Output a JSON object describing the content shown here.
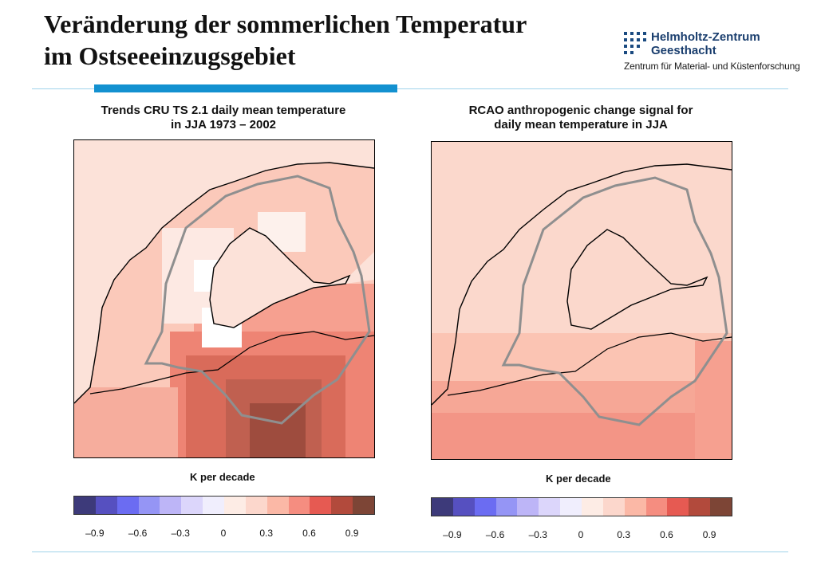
{
  "slide": {
    "title_line1": "Veränderung der sommerlichen Temperatur",
    "title_line2": "im Ostseeeinzugsgebiet"
  },
  "logo": {
    "name": "Helmholtz-Zentrum\nGeesthacht",
    "subtitle": "Zentrum für Material- und Küstenforschung",
    "color": "#1a3e6e"
  },
  "panels": [
    {
      "title": "Trends CRU TS 2.1 daily mean temperature\nin JJA 1973 – 2002",
      "units_label": "K per decade"
    },
    {
      "title": "RCAO anthropogenic change signal for\ndaily mean temperature in JJA",
      "units_label": "K per decade"
    }
  ],
  "colorbar": {
    "colors": [
      "#3d3a7a",
      "#5650c0",
      "#6b6cf2",
      "#9595f5",
      "#bdb5f7",
      "#dcd6fb",
      "#f0eefd",
      "#fdece5",
      "#fcd7cc",
      "#fbb8a6",
      "#f58d80",
      "#e65a52",
      "#b24a3c",
      "#7d4536"
    ],
    "tick_labels": [
      "–0.9",
      "–0.6",
      "–0.3",
      "0",
      "0.3",
      "0.6",
      "0.9"
    ]
  }
}
